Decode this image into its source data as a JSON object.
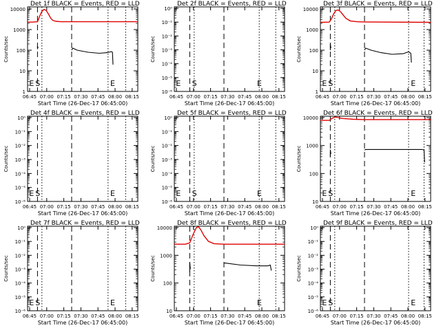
{
  "figure": {
    "time_ticks": [
      "06:45",
      "07:00",
      "07:15",
      "07:30",
      "07:45",
      "08:00",
      "08:15"
    ]
  },
  "chart_data": [
    {
      "type": "line",
      "title": "Det 1f BLACK = Events, RED = LLD",
      "xlabel": "Start Time (26-Dec-17 06:45:00)",
      "ylabel": "Counts/sec",
      "xlim": [
        0,
        100
      ],
      "scale": "decade",
      "yticks": [
        "1",
        "10",
        "100",
        "1000",
        "10000"
      ],
      "markers": [
        {
          "text": "E",
          "x": 1.5
        },
        {
          "text": "S",
          "x": 7
        },
        {
          "text": "E",
          "x": 75
        }
      ],
      "dashed": [
        9,
        40
      ],
      "dotted": [
        13,
        73,
        89
      ],
      "series": [
        {
          "name": "RED",
          "color": "#e00000",
          "points": [
            [
              0,
              3.36
            ],
            [
              4,
              3.36
            ],
            [
              9,
              3.38
            ],
            [
              11,
              3.65
            ],
            [
              13,
              3.88
            ],
            [
              15,
              3.98
            ],
            [
              17,
              3.92
            ],
            [
              19,
              3.75
            ],
            [
              21,
              3.55
            ],
            [
              23,
              3.44
            ],
            [
              26,
              3.4
            ],
            [
              30,
              3.38
            ],
            [
              40,
              3.38
            ],
            [
              100,
              3.38
            ]
          ]
        },
        {
          "name": "BLACK",
          "color": "#000000",
          "segments": [
            [
              [
                9,
                2.05
              ],
              [
                9,
                2.2
              ],
              [
                9.5,
                2.1
              ]
            ],
            [
              [
                40,
                2.0
              ],
              [
                41,
                2.1
              ],
              [
                45,
                2.0
              ],
              [
                55,
                1.9
              ],
              [
                65,
                1.85
              ],
              [
                72,
                1.88
              ],
              [
                76,
                1.93
              ],
              [
                77,
                1.9
              ],
              [
                77.5,
                1.3
              ]
            ]
          ]
        }
      ]
    },
    {
      "type": "line",
      "title": "Det 2f BLACK = Events, RED = LLD",
      "xlabel": "Start Time (26-Dec-17 06:45:00)",
      "ylabel": "Counts/sec",
      "xlim": [
        0,
        100
      ],
      "scale": "tiny",
      "yticks": [
        "10⁻⁶",
        "10⁻⁵",
        "10⁻⁴",
        "10⁻³",
        "10⁻²",
        "10⁻¹",
        "10⁰"
      ],
      "markers": [
        {
          "text": "E",
          "x": 1.5
        },
        {
          "text": "S",
          "x": 16
        },
        {
          "text": "E",
          "x": 75
        }
      ],
      "dashed": [
        14,
        45
      ],
      "dotted": [
        18,
        77,
        92
      ],
      "series": []
    },
    {
      "type": "line",
      "title": "Det 3f BLACK = Events, RED = LLD",
      "xlabel": "Start Time (26-Dec-17 06:45:00)",
      "ylabel": "Counts/sec",
      "xlim": [
        0,
        100
      ],
      "scale": "decade",
      "yticks": [
        "1",
        "10",
        "100",
        "1000",
        "10000"
      ],
      "markers": [
        {
          "text": "E",
          "x": 1.5
        },
        {
          "text": "S",
          "x": 7
        },
        {
          "text": "E",
          "x": 82
        }
      ],
      "dashed": [
        9,
        40
      ],
      "dotted": [
        13,
        80,
        94
      ],
      "series": [
        {
          "name": "RED",
          "color": "#e00000",
          "points": [
            [
              0,
              3.35
            ],
            [
              8,
              3.36
            ],
            [
              10,
              3.52
            ],
            [
              12,
              3.76
            ],
            [
              14,
              3.92
            ],
            [
              16,
              3.95
            ],
            [
              18,
              3.88
            ],
            [
              20,
              3.75
            ],
            [
              23,
              3.55
            ],
            [
              27,
              3.42
            ],
            [
              33,
              3.38
            ],
            [
              40,
              3.37
            ],
            [
              100,
              3.35
            ]
          ]
        },
        {
          "name": "BLACK",
          "color": "#000000",
          "segments": [
            [
              [
                9,
                2.0
              ],
              [
                9,
                2.3
              ],
              [
                9.5,
                2.1
              ]
            ],
            [
              [
                40,
                2.0
              ],
              [
                41,
                2.1
              ],
              [
                46,
                2.0
              ],
              [
                55,
                1.88
              ],
              [
                65,
                1.8
              ],
              [
                75,
                1.83
              ],
              [
                80,
                1.92
              ],
              [
                82,
                1.85
              ],
              [
                82.5,
                1.4
              ]
            ]
          ]
        }
      ]
    },
    {
      "type": "line",
      "title": "Det 4f BLACK = Events, RED = LLD",
      "xlabel": "Start Time (26-Dec-17 06:45:00)",
      "ylabel": "Counts/sec",
      "xlim": [
        0,
        100
      ],
      "scale": "tiny",
      "yticks": [
        "10⁻⁶",
        "10⁻⁵",
        "10⁻⁴",
        "10⁻³",
        "10⁻²",
        "10⁻¹",
        "10⁰"
      ],
      "markers": [
        {
          "text": "E",
          "x": 1.5
        },
        {
          "text": "S",
          "x": 7
        },
        {
          "text": "E",
          "x": 75
        }
      ],
      "dashed": [
        9,
        40
      ],
      "dotted": [
        13,
        73,
        89
      ],
      "series": []
    },
    {
      "type": "line",
      "title": "Det 5f BLACK = Events, RED = LLD",
      "xlabel": "Start Time (26-Dec-17 06:45:00)",
      "ylabel": "Counts/sec",
      "xlim": [
        0,
        100
      ],
      "scale": "tiny",
      "yticks": [
        "10⁻⁶",
        "10⁻⁵",
        "10⁻⁴",
        "10⁻³",
        "10⁻²",
        "10⁻¹",
        "10⁰"
      ],
      "markers": [
        {
          "text": "E",
          "x": 1.5
        },
        {
          "text": "S",
          "x": 16
        },
        {
          "text": "E",
          "x": 75
        }
      ],
      "dashed": [
        14,
        45
      ],
      "dotted": [
        18,
        77,
        92
      ],
      "series": []
    },
    {
      "type": "line",
      "title": "Det 6f BLACK = Events, RED = LLD",
      "xlabel": "Start Time (26-Dec-17 06:45:00)",
      "ylabel": "Counts/sec",
      "xlim": [
        0,
        100
      ],
      "scale": "big",
      "yticks": [
        "10",
        "100",
        "1000",
        "10000"
      ],
      "markers": [
        {
          "text": "E",
          "x": 1.5
        },
        {
          "text": "S",
          "x": 7
        },
        {
          "text": "E",
          "x": 82
        }
      ],
      "dashed": [
        9,
        40
      ],
      "dotted": [
        13,
        80,
        94
      ],
      "series": [
        {
          "name": "RED",
          "color": "#e00000",
          "points": [
            [
              0,
              3.9
            ],
            [
              8,
              3.9
            ],
            [
              10,
              3.96
            ],
            [
              12,
              4.0
            ],
            [
              14,
              4.02
            ],
            [
              16,
              4.0
            ],
            [
              20,
              3.97
            ],
            [
              30,
              3.94
            ],
            [
              40,
              3.93
            ],
            [
              60,
              3.93
            ],
            [
              100,
              3.93
            ]
          ]
        },
        {
          "name": "BLACK",
          "color": "#000000",
          "segments": [
            [
              [
                9,
                2.6
              ],
              [
                9,
                2.85
              ],
              [
                9.5,
                2.7
              ]
            ],
            [
              [
                40,
                2.84
              ],
              [
                41,
                2.86
              ],
              [
                60,
                2.86
              ],
              [
                80,
                2.86
              ],
              [
                92,
                2.86
              ],
              [
                94,
                2.84
              ],
              [
                94.5,
                2.4
              ]
            ]
          ]
        }
      ]
    },
    {
      "type": "line",
      "title": "Det 7f BLACK = Events, RED = LLD",
      "xlabel": "Start Time (26-Dec-17 06:45:00)",
      "ylabel": "Counts/sec",
      "xlim": [
        0,
        100
      ],
      "scale": "tiny",
      "yticks": [
        "10⁻⁶",
        "10⁻⁵",
        "10⁻⁴",
        "10⁻³",
        "10⁻²",
        "10⁻¹",
        "10⁰"
      ],
      "markers": [
        {
          "text": "E",
          "x": 1.5
        },
        {
          "text": "S",
          "x": 7
        },
        {
          "text": "E",
          "x": 75
        }
      ],
      "dashed": [
        9,
        40
      ],
      "dotted": [
        13,
        73,
        89
      ],
      "series": []
    },
    {
      "type": "line",
      "title": "Det 8f BLACK = Events, RED = LLD",
      "xlabel": "Start Time (26-Dec-17 06:45:00)",
      "ylabel": "Counts/sec",
      "xlim": [
        0,
        100
      ],
      "scale": "big",
      "yticks": [
        "10",
        "100",
        "1000",
        "10000"
      ],
      "markers": [
        {
          "text": "E",
          "x": 75
        }
      ],
      "dashed": [
        14,
        45
      ],
      "dotted": [
        18,
        77,
        92
      ],
      "series": [
        {
          "name": "RED",
          "color": "#e00000",
          "points": [
            [
              0,
              3.4
            ],
            [
              10,
              3.4
            ],
            [
              14,
              3.45
            ],
            [
              17,
              3.75
            ],
            [
              20,
              4.0
            ],
            [
              22,
              4.03
            ],
            [
              24,
              3.92
            ],
            [
              27,
              3.7
            ],
            [
              31,
              3.5
            ],
            [
              36,
              3.42
            ],
            [
              45,
              3.4
            ],
            [
              100,
              3.4
            ]
          ]
        },
        {
          "name": "BLACK",
          "color": "#000000",
          "segments": [
            [
              [
                14,
                2.4
              ],
              [
                14,
                2.75
              ],
              [
                14.5,
                2.5
              ]
            ],
            [
              [
                45,
                2.72
              ],
              [
                46,
                2.72
              ],
              [
                60,
                2.65
              ],
              [
                75,
                2.62
              ],
              [
                85,
                2.62
              ],
              [
                87,
                2.65
              ],
              [
                88,
                2.45
              ]
            ]
          ]
        }
      ]
    },
    {
      "type": "line",
      "title": "Det 9f BLACK = Events, RED = LLD",
      "xlabel": "Start Time (26-Dec-17 06:45:00)",
      "ylabel": "Counts/sec",
      "xlim": [
        0,
        100
      ],
      "scale": "tiny",
      "yticks": [
        "10⁻⁶",
        "10⁻⁵",
        "10⁻⁴",
        "10⁻³",
        "10⁻²",
        "10⁻¹",
        "10⁰"
      ],
      "markers": [
        {
          "text": "E",
          "x": 1.5
        },
        {
          "text": "S",
          "x": 7
        },
        {
          "text": "E",
          "x": 82
        }
      ],
      "dashed": [
        9,
        40
      ],
      "dotted": [
        13,
        80,
        94
      ],
      "series": []
    }
  ]
}
